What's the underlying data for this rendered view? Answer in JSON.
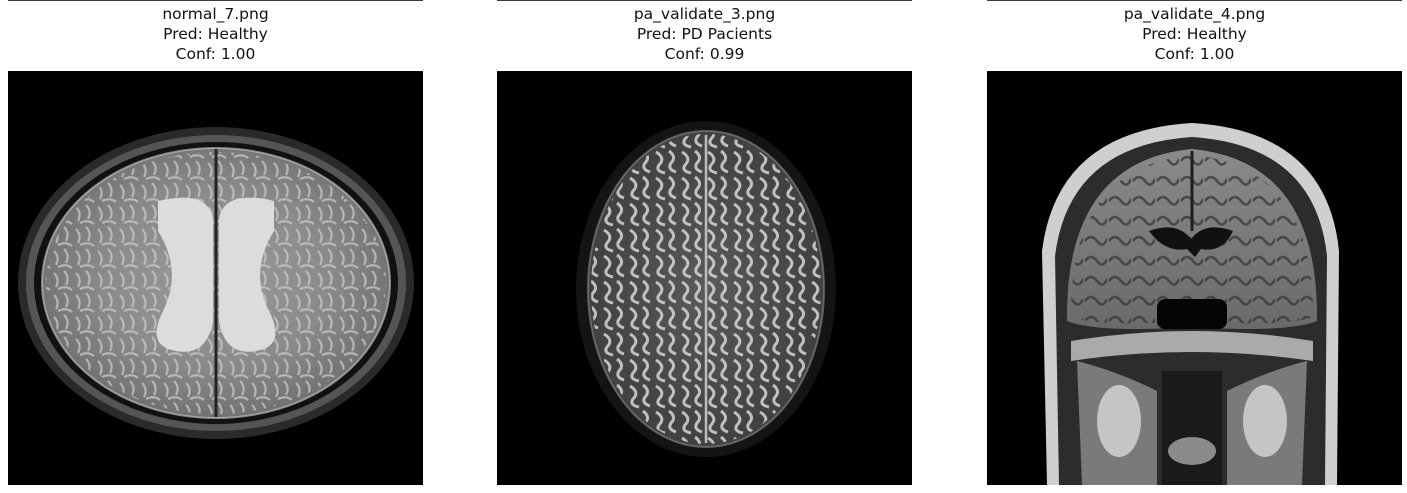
{
  "panels": [
    {
      "filename": "normal_7.png",
      "prediction": "Pred: Healthy",
      "confidence": "Conf: 1.00",
      "image_kind": "axial-t2-brain-mri"
    },
    {
      "filename": "pa_validate_3.png",
      "prediction": "Pred: PD Pacients",
      "confidence": "Conf: 0.99",
      "image_kind": "axial-diffusion-brain-mri"
    },
    {
      "filename": "pa_validate_4.png",
      "prediction": "Pred: Healthy",
      "confidence": "Conf: 1.00",
      "image_kind": "coronal-t1-brain-mri"
    }
  ]
}
